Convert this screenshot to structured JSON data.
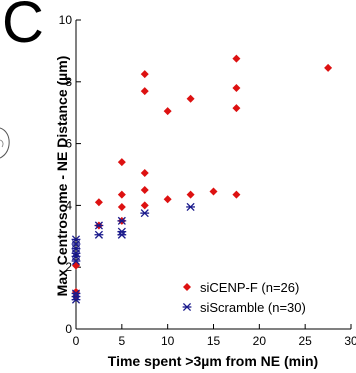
{
  "panel": {
    "letter": "C"
  },
  "chart_data": {
    "type": "scatter",
    "xlabel": "Time spent >3µm from NE (min)",
    "ylabel": "Max Centrosome - NE Distance (µm)",
    "xlim": [
      0,
      30
    ],
    "ylim": [
      0,
      10
    ],
    "xticks": [
      0,
      5,
      10,
      15,
      20,
      25,
      30
    ],
    "yticks": [
      0,
      2,
      4,
      6,
      8,
      10
    ],
    "grid": false,
    "legend_position": "bottom-right",
    "series": [
      {
        "name": "siCENP-F (n=26)",
        "marker": "diamond",
        "color": "#dd1111",
        "points": [
          [
            0,
            2.05
          ],
          [
            0,
            1.2
          ],
          [
            0,
            1.05
          ],
          [
            2.5,
            4.1
          ],
          [
            2.5,
            3.35
          ],
          [
            5,
            5.4
          ],
          [
            5,
            4.35
          ],
          [
            5,
            3.95
          ],
          [
            5,
            3.5
          ],
          [
            7.5,
            8.25
          ],
          [
            7.5,
            7.7
          ],
          [
            7.5,
            5.05
          ],
          [
            7.5,
            4.5
          ],
          [
            7.5,
            4.0
          ],
          [
            10,
            7.05
          ],
          [
            10,
            4.2
          ],
          [
            12.5,
            7.45
          ],
          [
            12.5,
            4.35
          ],
          [
            15,
            4.45
          ],
          [
            17.5,
            8.75
          ],
          [
            17.5,
            7.8
          ],
          [
            17.5,
            7.15
          ],
          [
            17.5,
            4.35
          ],
          [
            27.5,
            8.45
          ]
        ]
      },
      {
        "name": "siScramble (n=30)",
        "marker": "asterisk",
        "color": "#1a1a8c",
        "points": [
          [
            0,
            2.9
          ],
          [
            0,
            2.75
          ],
          [
            0,
            2.6
          ],
          [
            0,
            2.45
          ],
          [
            0,
            2.35
          ],
          [
            0,
            2.2
          ],
          [
            0,
            1.15
          ],
          [
            0,
            1.05
          ],
          [
            0,
            0.95
          ],
          [
            2.5,
            3.35
          ],
          [
            2.5,
            3.05
          ],
          [
            5,
            3.5
          ],
          [
            5,
            3.15
          ],
          [
            5,
            3.05
          ],
          [
            7.5,
            3.75
          ],
          [
            12.5,
            3.95
          ]
        ]
      }
    ]
  }
}
